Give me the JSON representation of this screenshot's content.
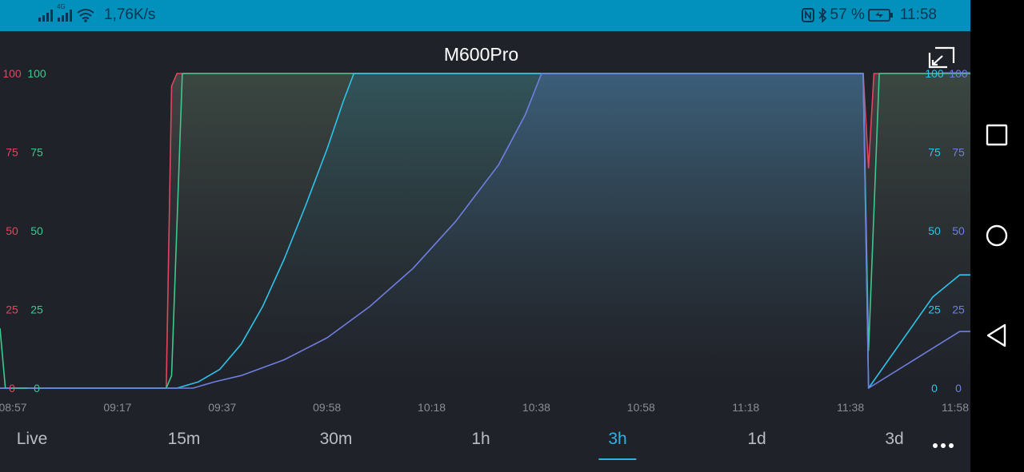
{
  "status_bar": {
    "network_speed": "1,76K/s",
    "network_label": "4G",
    "battery_percent": "57 %",
    "time": "11:58",
    "icons": [
      "signal-icon",
      "4g-signal-icon",
      "wifi-icon",
      "nfc-icon",
      "bluetooth-icon",
      "battery-charging-icon"
    ]
  },
  "device_title": "M600Pro",
  "fullscreen_icon": "exit-fullscreen-icon",
  "time_tabs": [
    "Live",
    "15m",
    "30m",
    "1h",
    "3h",
    "1d",
    "3d"
  ],
  "active_tab": "3h",
  "more_icon": "more-horizontal-icon",
  "nav_bar": {
    "icons": [
      "recent-apps-icon",
      "home-icon",
      "back-icon"
    ]
  },
  "colors": {
    "background": "#202229",
    "status_bar": "#0290bc",
    "accent": "#2fb2e6",
    "red_series": "#e0475e",
    "green_series": "#3cc98e",
    "cyan_series": "#2ec3ea",
    "purple_series": "#6f7fe0"
  },
  "chart_data": {
    "type": "area",
    "x_tick_labels": [
      "08:57",
      "09:17",
      "09:37",
      "09:58",
      "10:18",
      "10:38",
      "10:58",
      "11:18",
      "11:38",
      "11:58"
    ],
    "xlim": [
      "08:57",
      "11:58"
    ],
    "ylim": [
      0,
      100
    ],
    "y_ticks": [
      0,
      25,
      50,
      75,
      100
    ],
    "grid": false,
    "axes": [
      {
        "side": "left",
        "color": "#e0475e",
        "ticks": [
          "0",
          "25",
          "50",
          "75",
          "100"
        ]
      },
      {
        "side": "left",
        "color": "#3cc98e",
        "ticks": [
          "0",
          "25",
          "50",
          "75",
          "100"
        ]
      },
      {
        "side": "right",
        "color": "#2ec3ea",
        "ticks": [
          "0",
          "25",
          "50",
          "75",
          "100"
        ]
      },
      {
        "side": "right",
        "color": "#6f7fe0",
        "ticks": [
          "0",
          "25",
          "50",
          "75",
          "100"
        ]
      }
    ],
    "series": [
      {
        "color": "#e0475e",
        "points": [
          [
            "08:57",
            0
          ],
          [
            "09:28",
            0
          ],
          [
            "09:29",
            96
          ],
          [
            "09:30",
            100
          ],
          [
            "11:38",
            100
          ],
          [
            "11:39",
            70
          ],
          [
            "11:40",
            100
          ],
          [
            "11:58",
            100
          ]
        ]
      },
      {
        "color": "#3cc98e",
        "points": [
          [
            "08:57",
            19
          ],
          [
            "08:58",
            0
          ],
          [
            "09:28",
            0
          ],
          [
            "09:29",
            4
          ],
          [
            "09:31",
            100
          ],
          [
            "11:38",
            100
          ],
          [
            "11:39",
            12
          ],
          [
            "11:41",
            100
          ],
          [
            "11:58",
            100
          ]
        ]
      },
      {
        "color": "#2ec3ea",
        "points": [
          [
            "08:57",
            0
          ],
          [
            "09:30",
            0
          ],
          [
            "09:34",
            2
          ],
          [
            "09:38",
            6
          ],
          [
            "09:42",
            14
          ],
          [
            "09:46",
            26
          ],
          [
            "09:50",
            41
          ],
          [
            "09:54",
            58
          ],
          [
            "09:58",
            76
          ],
          [
            "10:01",
            91
          ],
          [
            "10:03",
            100
          ],
          [
            "11:38",
            100
          ],
          [
            "11:39",
            0
          ],
          [
            "11:51",
            29
          ],
          [
            "11:56",
            36
          ],
          [
            "11:58",
            36
          ]
        ]
      },
      {
        "color": "#6f7fe0",
        "points": [
          [
            "08:57",
            0
          ],
          [
            "09:33",
            0
          ],
          [
            "09:37",
            2
          ],
          [
            "09:42",
            4
          ],
          [
            "09:50",
            9
          ],
          [
            "09:58",
            16
          ],
          [
            "10:06",
            26
          ],
          [
            "10:14",
            38
          ],
          [
            "10:22",
            53
          ],
          [
            "10:30",
            71
          ],
          [
            "10:35",
            87
          ],
          [
            "10:38",
            100
          ],
          [
            "11:38",
            100
          ],
          [
            "11:39",
            0
          ],
          [
            "11:56",
            18
          ],
          [
            "11:58",
            18
          ]
        ]
      }
    ]
  }
}
